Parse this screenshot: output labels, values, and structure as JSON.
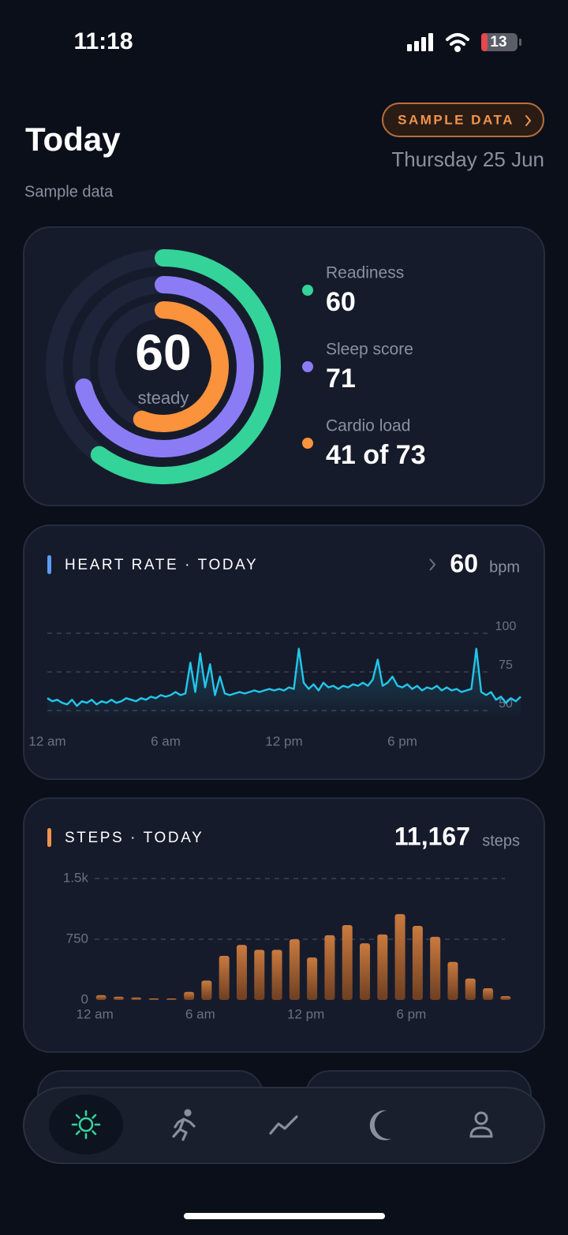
{
  "status_bar": {
    "time": "11:18",
    "battery": "13"
  },
  "header": {
    "title": "Today",
    "subtitle": "Sample data",
    "badge": "SAMPLE DATA",
    "date": "Thursday 25 Jun"
  },
  "summary": {
    "center_value": 60,
    "center_label": "steady",
    "metrics": [
      {
        "label": "Readiness",
        "value": 60,
        "color": "#34d399"
      },
      {
        "label": "Sleep score",
        "value": 71,
        "color": "#8b7cf6"
      },
      {
        "label": "Cardio load",
        "value": 41,
        "max": 73,
        "value_label": "41 of 73",
        "color": "#fb923c"
      }
    ]
  },
  "chart_data": [
    {
      "type": "line",
      "title": "HEART RATE · TODAY",
      "current": 60,
      "unit": "bpm",
      "color": "#22c7ea",
      "x": [
        0,
        0.25,
        0.5,
        0.75,
        1,
        1.25,
        1.5,
        1.75,
        2,
        2.25,
        2.5,
        2.75,
        3,
        3.25,
        3.5,
        3.75,
        4,
        4.25,
        4.5,
        4.75,
        5,
        5.25,
        5.5,
        5.75,
        6,
        6.25,
        6.5,
        6.75,
        7,
        7.25,
        7.5,
        7.75,
        8,
        8.25,
        8.5,
        8.75,
        9,
        9.25,
        9.5,
        9.75,
        10,
        10.25,
        10.5,
        10.75,
        11,
        11.25,
        11.5,
        11.75,
        12,
        12.25,
        12.5,
        12.75,
        13,
        13.25,
        13.5,
        13.75,
        14,
        14.25,
        14.5,
        14.75,
        15,
        15.25,
        15.5,
        15.75,
        16,
        16.25,
        16.5,
        16.75,
        17,
        17.25,
        17.5,
        17.75,
        18,
        18.25,
        18.5,
        18.75,
        19,
        19.25,
        19.5,
        19.75,
        20,
        20.25,
        20.5,
        20.75,
        21,
        21.25,
        21.5,
        21.75,
        22,
        22.25,
        22.5,
        22.75,
        23,
        23.25,
        23.5,
        23.75,
        24
      ],
      "values": [
        58,
        56,
        57,
        55,
        54,
        57,
        53,
        56,
        55,
        57,
        54,
        56,
        55,
        57,
        55,
        56,
        58,
        57,
        56,
        58,
        57,
        59,
        58,
        60,
        59,
        60,
        62,
        60,
        61,
        81,
        62,
        87,
        65,
        80,
        60,
        72,
        61,
        60,
        61,
        62,
        61,
        62,
        63,
        62,
        63,
        64,
        63,
        64,
        63,
        65,
        64,
        90,
        68,
        64,
        67,
        63,
        68,
        65,
        66,
        64,
        66,
        65,
        67,
        66,
        68,
        66,
        70,
        83,
        66,
        68,
        72,
        66,
        65,
        67,
        64,
        66,
        63,
        65,
        64,
        66,
        63,
        65,
        63,
        64,
        62,
        63,
        64,
        90,
        62,
        60,
        62,
        57,
        59,
        55,
        58,
        56,
        59
      ],
      "xlim": [
        0,
        24
      ],
      "xticks": [
        {
          "value": 0,
          "label": "12 am"
        },
        {
          "value": 6,
          "label": "6 am"
        },
        {
          "value": 12,
          "label": "12 pm"
        },
        {
          "value": 18,
          "label": "6 pm"
        }
      ],
      "ylim": [
        45,
        105
      ],
      "yticks": [
        50,
        75,
        100
      ],
      "grid": true
    },
    {
      "type": "bar",
      "title": "STEPS · TODAY",
      "total": "11,167",
      "unit": "steps",
      "color": "#c97a3f",
      "categories": [
        "12 am",
        null,
        null,
        null,
        null,
        null,
        "6 am",
        null,
        null,
        null,
        null,
        null,
        "12 pm",
        null,
        null,
        null,
        null,
        null,
        "6 pm",
        null,
        null,
        null,
        null,
        null
      ],
      "values": [
        60,
        40,
        30,
        20,
        20,
        100,
        240,
        545,
        680,
        620,
        620,
        750,
        525,
        800,
        925,
        700,
        810,
        1060,
        915,
        780,
        470,
        265,
        145,
        47
      ],
      "ylim": [
        0,
        1500
      ],
      "yticks": [
        0,
        750,
        {
          "value": 1500,
          "label": "1.5k"
        }
      ],
      "grid": true
    }
  ]
}
